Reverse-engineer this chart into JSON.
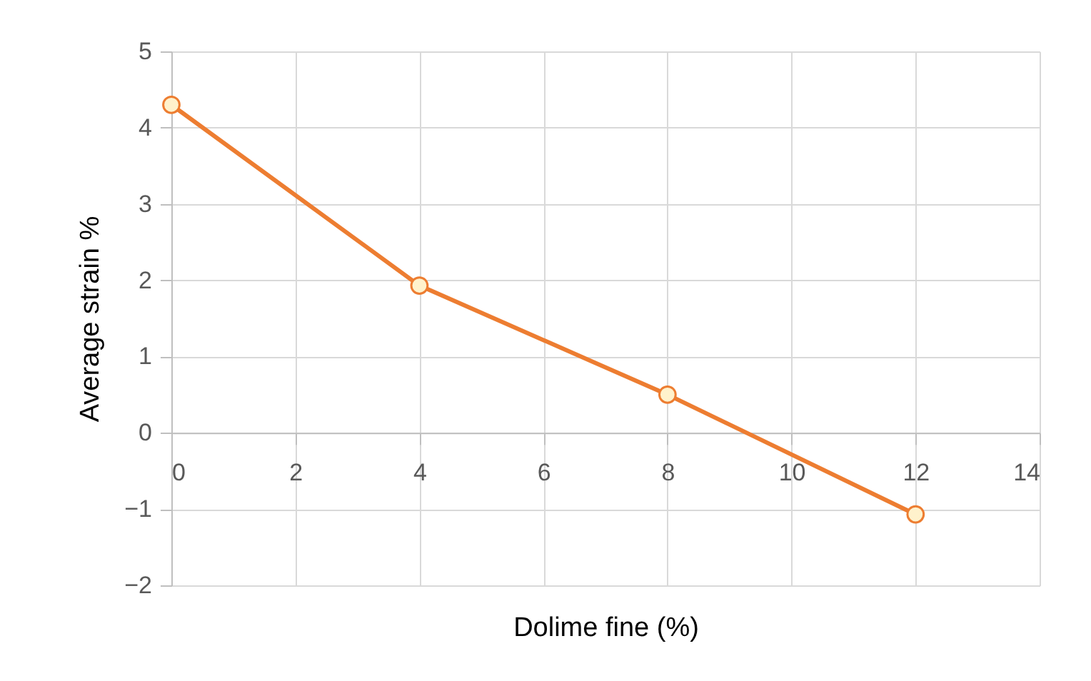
{
  "chart_data": {
    "type": "line",
    "xlabel": "Dolime fine (%)",
    "ylabel": "Average strain %",
    "x": [
      0,
      4,
      8,
      12
    ],
    "series": [
      {
        "color": "#ed7d31",
        "values": [
          4.3,
          1.93,
          0.5,
          -1.07
        ]
      }
    ],
    "xlim": [
      0,
      14
    ],
    "xticks": [
      0,
      2,
      4,
      6,
      8,
      10,
      12,
      14
    ],
    "ylim": [
      -2,
      5
    ],
    "yticks": [
      -2,
      -1,
      0,
      1,
      2,
      3,
      4,
      5
    ],
    "grid": true,
    "marker": "circle",
    "line_style": "solid"
  }
}
